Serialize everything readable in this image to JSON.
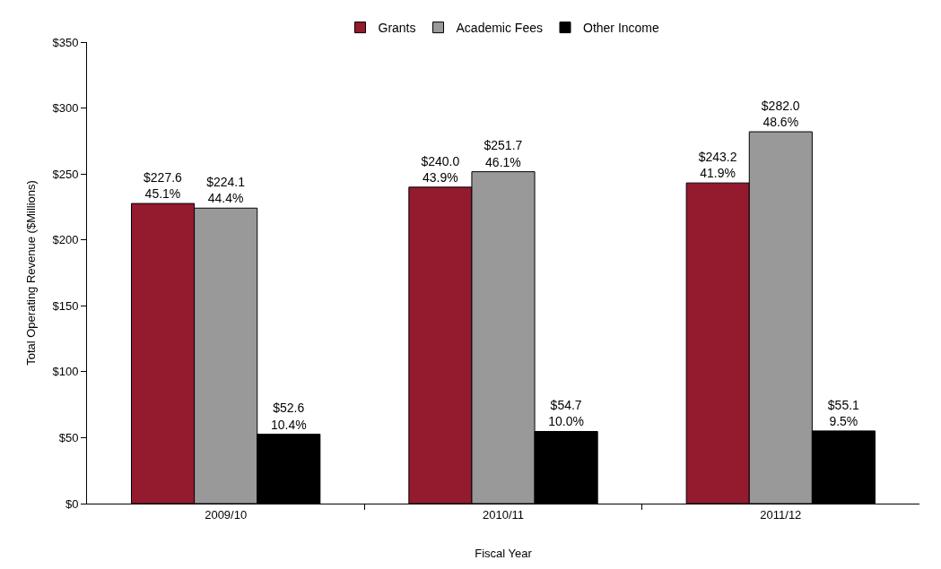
{
  "chart_data": {
    "type": "bar",
    "xlabel": "Fiscal Year",
    "ylabel": "Total Operating Revenue ($Millions)",
    "categories": [
      "2009/10",
      "2010/11",
      "2011/12"
    ],
    "series": [
      {
        "name": "Grants",
        "color": "#941a2e",
        "values": [
          227.6,
          240.0,
          243.2
        ],
        "value_labels": [
          "$227.6\n45.1%",
          "$240.0\n43.9%",
          "$243.2\n41.9%"
        ]
      },
      {
        "name": "Academic Fees",
        "color": "#999999",
        "values": [
          224.1,
          251.7,
          282.0
        ],
        "value_labels": [
          "$224.1\n44.4%",
          "$251.7\n46.1%",
          "$282.0\n48.6%"
        ]
      },
      {
        "name": "Other Income",
        "color": "#000000",
        "values": [
          52.6,
          54.7,
          55.1
        ],
        "value_labels": [
          "$52.6\n10.4%",
          "$54.7\n10.0%",
          "$55.1\n9.5%"
        ]
      }
    ],
    "ylim": [
      0,
      350
    ],
    "yticks": [
      {
        "value": 0,
        "label": "$0"
      },
      {
        "value": 50,
        "label": "$50"
      },
      {
        "value": 100,
        "label": "$100"
      },
      {
        "value": 150,
        "label": "$150"
      },
      {
        "value": 200,
        "label": "$200"
      },
      {
        "value": 250,
        "label": "$250"
      },
      {
        "value": 300,
        "label": "$300"
      },
      {
        "value": 350,
        "label": "$350"
      }
    ],
    "legend": "top"
  }
}
